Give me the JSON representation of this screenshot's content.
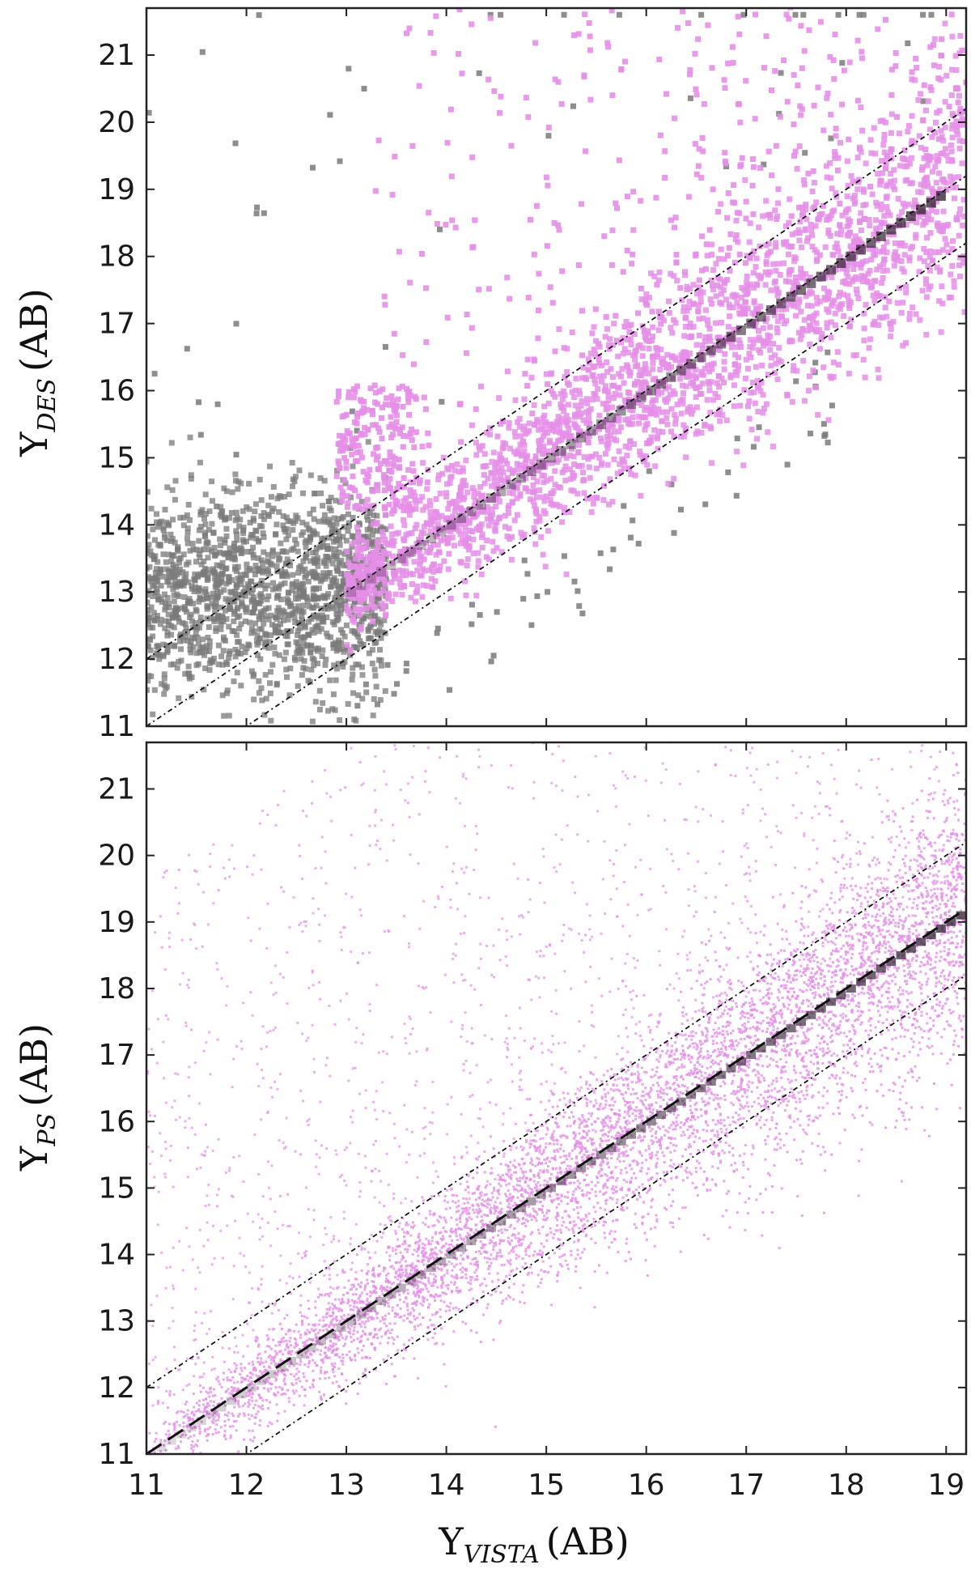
{
  "chart_data": [
    {
      "type": "scatter",
      "panel": "top",
      "ylabel": {
        "main": "Y",
        "sub": "DES",
        "unit": "(AB)"
      },
      "xlim": [
        11,
        19.2
      ],
      "ylim": [
        11,
        21.7
      ],
      "xticks": [
        11,
        12,
        13,
        14,
        15,
        16,
        17,
        18,
        19
      ],
      "yticks": [
        11,
        12,
        13,
        14,
        15,
        16,
        17,
        18,
        19,
        20,
        21
      ],
      "tick_labels_x_shown": false,
      "series": [
        {
          "color": "#7a7a7a",
          "description_points": [
            [
              11.2,
              13.2
            ],
            [
              11.6,
              12.6
            ],
            [
              12.0,
              13.6
            ],
            [
              12.4,
              12.9
            ],
            [
              12.8,
              13.3
            ],
            [
              12.2,
              14.5
            ],
            [
              13.2,
              12.6
            ],
            [
              12.1,
              20.9
            ],
            [
              12.3,
              19.6
            ],
            [
              12.2,
              17.6
            ],
            [
              12.0,
              16.6
            ]
          ],
          "dense_region": {
            "x": [
              11,
              13.3
            ],
            "y": [
              11.3,
              15.2
            ]
          }
        },
        {
          "color": "#e58ee8",
          "ridge": {
            "x": [
              13.0,
              19.2
            ],
            "y_offset": 0.0
          },
          "upper_branch": {
            "x": [
              13.0,
              13.7
            ],
            "y": [
              14.5,
              16.1
            ]
          }
        }
      ],
      "reference_lines": [
        {
          "style": "dash-dot",
          "slope": 1,
          "intercept": 0
        },
        {
          "style": "dash-dot",
          "slope": 1,
          "intercept": 1
        },
        {
          "style": "dash-dot",
          "slope": 1,
          "intercept": -1
        }
      ]
    },
    {
      "type": "scatter",
      "panel": "bottom",
      "xlabel": {
        "main": "Y",
        "sub": "VISTA",
        "unit": "(AB)"
      },
      "ylabel": {
        "main": "Y",
        "sub": "PS",
        "unit": "(AB)"
      },
      "xlim": [
        11,
        19.2
      ],
      "ylim": [
        11,
        21.7
      ],
      "xticks": [
        11,
        12,
        13,
        14,
        15,
        16,
        17,
        18,
        19
      ],
      "yticks": [
        11,
        12,
        13,
        14,
        15,
        16,
        17,
        18,
        19,
        20,
        21
      ],
      "series": [
        {
          "color": "#e58ee8",
          "ridge": {
            "x": [
              11.0,
              19.2
            ],
            "y_offset": 0.0
          }
        }
      ],
      "reference_lines": [
        {
          "style": "dashed",
          "slope": 1,
          "intercept": 0
        },
        {
          "style": "dash-dot",
          "slope": 1,
          "intercept": 1
        },
        {
          "style": "dash-dot",
          "slope": 1,
          "intercept": -1
        }
      ]
    }
  ]
}
